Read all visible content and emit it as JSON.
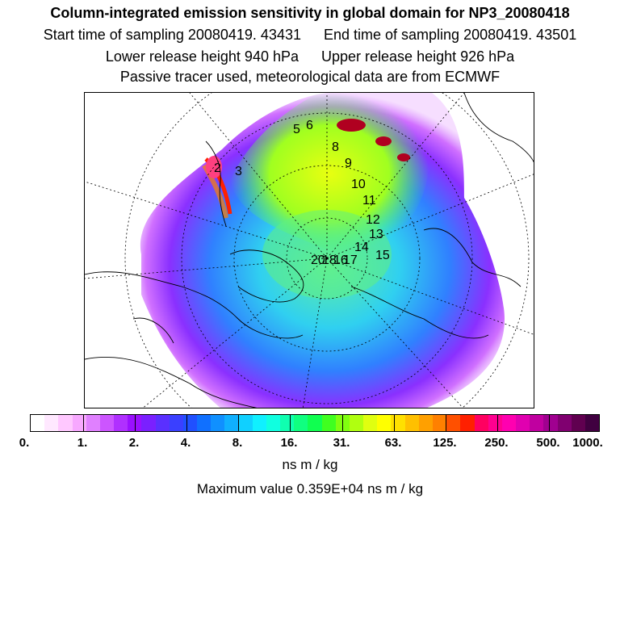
{
  "header": {
    "title": "Column-integrated emission sensitivity in global domain for NP3_20080418",
    "start_label": "Start time of sampling 20080419. 43431",
    "end_label": "End time of sampling 20080419. 43501",
    "lower_label": "Lower release height  940 hPa",
    "upper_label": "Upper release height  926 hPa",
    "tracer_label": "Passive tracer used, meteorological data are from ECMWF"
  },
  "map": {
    "trajectory_labels": [
      "2",
      "3",
      "5",
      "6",
      "8",
      "9",
      "10",
      "11",
      "12",
      "13",
      "14",
      "15",
      "20",
      "18",
      "16",
      "17"
    ]
  },
  "colorbar": {
    "colors": [
      "#ffffff",
      "#ffe8ff",
      "#ffc8ff",
      "#f7a8ff",
      "#e080ff",
      "#cc55ff",
      "#b030ff",
      "#9a10ff",
      "#7a20ff",
      "#5a30ff",
      "#3a40ff",
      "#2050ff",
      "#1070ff",
      "#1090ff",
      "#10b0ff",
      "#10d0ff",
      "#10f0ff",
      "#10ffe0",
      "#10ffb0",
      "#10ff80",
      "#10ff50",
      "#40ff20",
      "#80ff10",
      "#b0ff10",
      "#e0ff10",
      "#ffff00",
      "#ffe000",
      "#ffc000",
      "#ffa000",
      "#ff8000",
      "#ff5000",
      "#ff2000",
      "#ff0060",
      "#ff0090",
      "#ff00b0",
      "#e000b0",
      "#c000a0",
      "#a00090",
      "#800070",
      "#600050",
      "#400040"
    ],
    "tick_labels": [
      "0.",
      "1.",
      "2.",
      "4.",
      "8.",
      "16.",
      "31.",
      "63.",
      "125.",
      "250.",
      "500.",
      "1000."
    ],
    "units": "ns m / kg",
    "max_label": "Maximum value  0.359E+04 ns m / kg"
  }
}
